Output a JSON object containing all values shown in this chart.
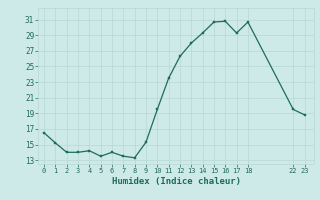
{
  "x": [
    0,
    1,
    2,
    3,
    4,
    5,
    6,
    7,
    8,
    9,
    10,
    11,
    12,
    13,
    14,
    15,
    16,
    17,
    18,
    22,
    23
  ],
  "y": [
    16.5,
    15.2,
    14.0,
    14.0,
    14.2,
    13.5,
    14.0,
    13.5,
    13.3,
    15.3,
    19.5,
    23.5,
    26.3,
    28.0,
    29.3,
    30.7,
    30.8,
    29.3,
    30.7,
    19.5,
    18.8
  ],
  "xlabel": "Humidex (Indice chaleur)",
  "background_color": "#ceeae8",
  "grid_color": "#b8d8d5",
  "line_color": "#1e6b5e",
  "marker_color": "#1e6b5e",
  "ylim": [
    12.5,
    32.5
  ],
  "yticks": [
    13,
    15,
    17,
    19,
    21,
    23,
    25,
    27,
    29,
    31
  ],
  "xtick_pos": [
    0,
    1,
    2,
    3,
    4,
    5,
    6,
    7,
    8,
    9,
    10,
    11,
    12,
    13,
    14,
    15,
    16,
    17,
    18,
    22,
    23
  ],
  "xtick_labels": [
    "0",
    "1",
    "2",
    "3",
    "4",
    "5",
    "6",
    "7",
    "8",
    "9",
    "10",
    "11",
    "12",
    "13",
    "14",
    "15",
    "16",
    "17",
    "18",
    "22",
    "23"
  ],
  "xlim": [
    -0.5,
    23.8
  ]
}
